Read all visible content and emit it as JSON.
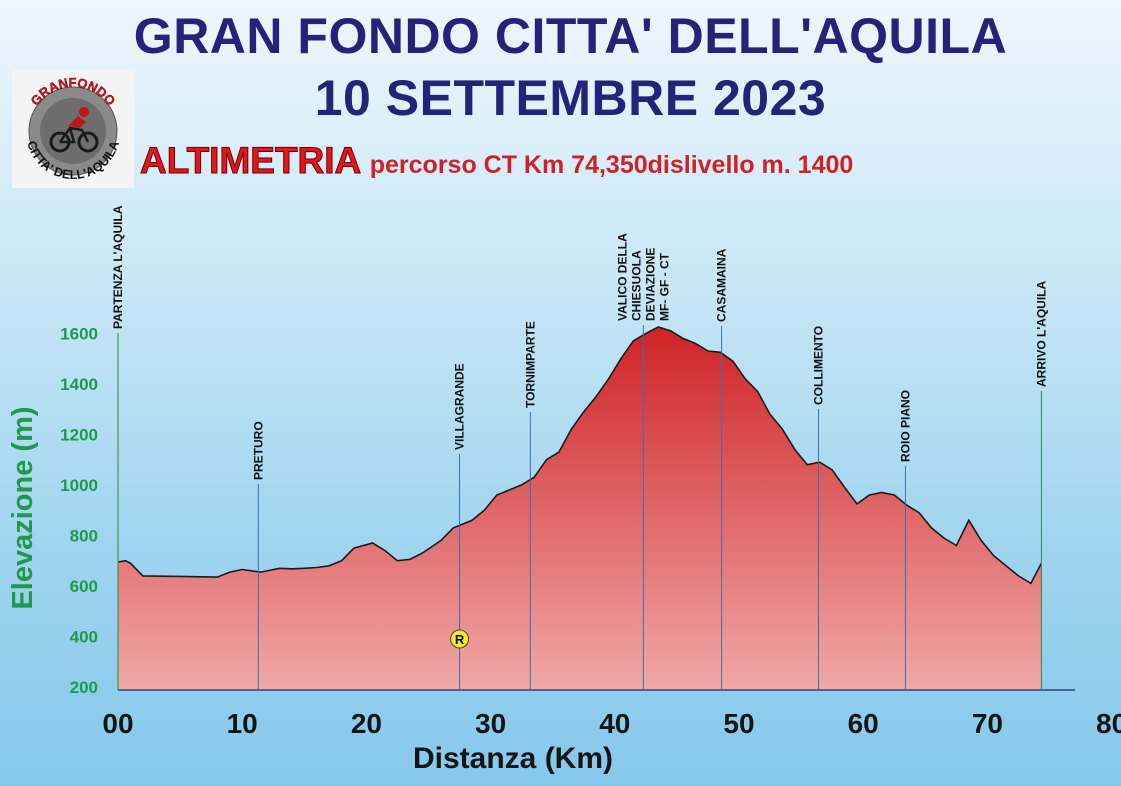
{
  "header": {
    "title_line1": "GRAN FONDO CITTA' DELL'AQUILA",
    "title_line2": "10 SETTEMBRE 2023",
    "altimetria_label": "ALTIMETRIA",
    "route_info": "percorso CT Km 74,350dislivello m. 1400"
  },
  "logo": {
    "text_top": "GRANFONDO",
    "text_bottom": "CITTA' DELL'AQUILA"
  },
  "colors": {
    "title": "#23237a",
    "altimetria": "#e3161d",
    "axis_label": "#1f9a4a",
    "fill_top": "#cf2326",
    "fill_bottom": "#f0a8a8",
    "marker_line": "#3a6fb5",
    "refreshment_marker": "#f4ea2a"
  },
  "chart_data": {
    "type": "area",
    "xlabel": "Distanza (Km)",
    "ylabel": "Elevazione (m)",
    "xlim": [
      0,
      80
    ],
    "ylim": [
      200,
      1600
    ],
    "x_ticks": [
      0,
      10,
      20,
      30,
      40,
      50,
      60,
      70,
      80
    ],
    "x_tick_labels": [
      "00",
      "10",
      "20",
      "30",
      "40",
      "50",
      "60",
      "70",
      "80"
    ],
    "y_ticks": [
      200,
      400,
      600,
      800,
      1000,
      1200,
      1400,
      1600
    ],
    "y_tick_labels": [
      "200",
      "400",
      "600",
      "800",
      "1000",
      "1200",
      "1400",
      "1600"
    ],
    "grid": false,
    "profile": {
      "x": [
        0,
        0.6,
        1,
        2,
        5,
        8,
        9,
        10,
        11.5,
        13,
        14,
        15,
        16,
        17,
        18,
        19,
        20.5,
        21.5,
        22.5,
        23.5,
        24.5,
        26,
        27,
        28.5,
        29.5,
        30.5,
        31.5,
        32.5,
        33.5,
        34.5,
        35.5,
        36.5,
        37.5,
        38.5,
        39.5,
        40.5,
        41.5,
        42.5,
        43.5,
        44.5,
        45.5,
        46.5,
        47.5,
        48.5,
        49.5,
        50.5,
        51.5,
        52.5,
        53.5,
        54.5,
        55.5,
        56.5,
        57.5,
        58.5,
        59.5,
        60.5,
        61.5,
        62.5,
        63.5,
        64.5,
        65.5,
        66.5,
        67.5,
        68.5,
        69.5,
        70.5,
        71.5,
        72.5,
        73.5,
        74.35
      ],
      "y": [
        695,
        700,
        690,
        640,
        638,
        635,
        655,
        665,
        655,
        670,
        668,
        670,
        673,
        680,
        700,
        750,
        770,
        740,
        700,
        705,
        730,
        780,
        830,
        860,
        900,
        960,
        980,
        1000,
        1030,
        1100,
        1130,
        1220,
        1290,
        1350,
        1420,
        1500,
        1570,
        1600,
        1625,
        1610,
        1580,
        1560,
        1530,
        1525,
        1490,
        1420,
        1370,
        1280,
        1220,
        1140,
        1080,
        1090,
        1060,
        990,
        925,
        960,
        970,
        960,
        920,
        890,
        830,
        790,
        760,
        860,
        780,
        720,
        680,
        640,
        610,
        690
      ]
    },
    "markers": [
      {
        "km": 0,
        "label": "PARTENZA L'AQUILA"
      },
      {
        "km": 11.3,
        "label": "PRETURO"
      },
      {
        "km": 27.5,
        "label": "VILLAGRANDE"
      },
      {
        "km": 33.2,
        "label": "TORNIMPARTE"
      },
      {
        "km": 42.3,
        "label": "VALICO DELLA CHIESUOLA DEVIAZIONE MF- GF - CT"
      },
      {
        "km": 48.6,
        "label": "CASAMAINA"
      },
      {
        "km": 56.4,
        "label": "COLLIMENTO"
      },
      {
        "km": 63.4,
        "label": "ROIO PIANO"
      },
      {
        "km": 74.35,
        "label": "ARRIVO L'AQUILA"
      }
    ],
    "refreshment": {
      "km": 27.5,
      "elevation": 390,
      "label": "R"
    }
  }
}
